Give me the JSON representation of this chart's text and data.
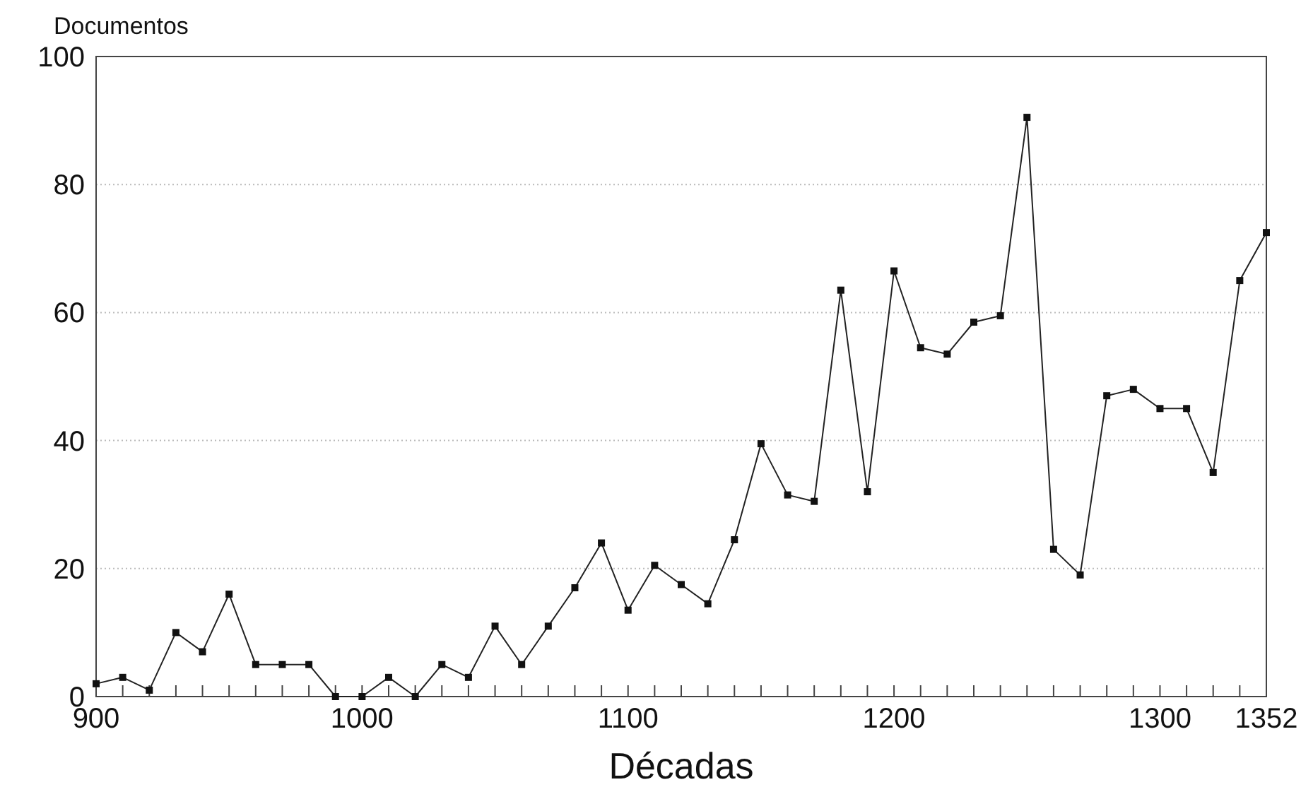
{
  "chart_data": {
    "type": "line",
    "ylabel": "Documentos",
    "xlabel": "Décadas",
    "categories": [
      "900",
      null,
      null,
      null,
      null,
      null,
      null,
      null,
      null,
      null,
      "1000",
      null,
      null,
      null,
      null,
      null,
      null,
      null,
      null,
      null,
      "1100",
      null,
      null,
      null,
      null,
      null,
      null,
      null,
      null,
      null,
      "1200",
      null,
      null,
      null,
      null,
      null,
      null,
      null,
      null,
      null,
      "1300",
      null,
      null,
      null,
      "1352"
    ],
    "series": [
      {
        "color": "#222222",
        "values": [
          2,
          3,
          1,
          10,
          7,
          16,
          5,
          5,
          5,
          0,
          0,
          3,
          0,
          5,
          3,
          11,
          5,
          11,
          17,
          24,
          13.5,
          20.5,
          17.5,
          14.5,
          24.5,
          39.5,
          31.5,
          30.5,
          63.5,
          32,
          66.5,
          54.5,
          53.5,
          58.5,
          59.5,
          90.5,
          23,
          19,
          47,
          48,
          45,
          45,
          35,
          65,
          72.5
        ]
      }
    ],
    "ylim": [
      0,
      100
    ],
    "yticks": [
      0,
      20,
      40,
      60,
      80,
      100
    ],
    "grid": "y",
    "marker": "square",
    "line_style": "solid"
  }
}
